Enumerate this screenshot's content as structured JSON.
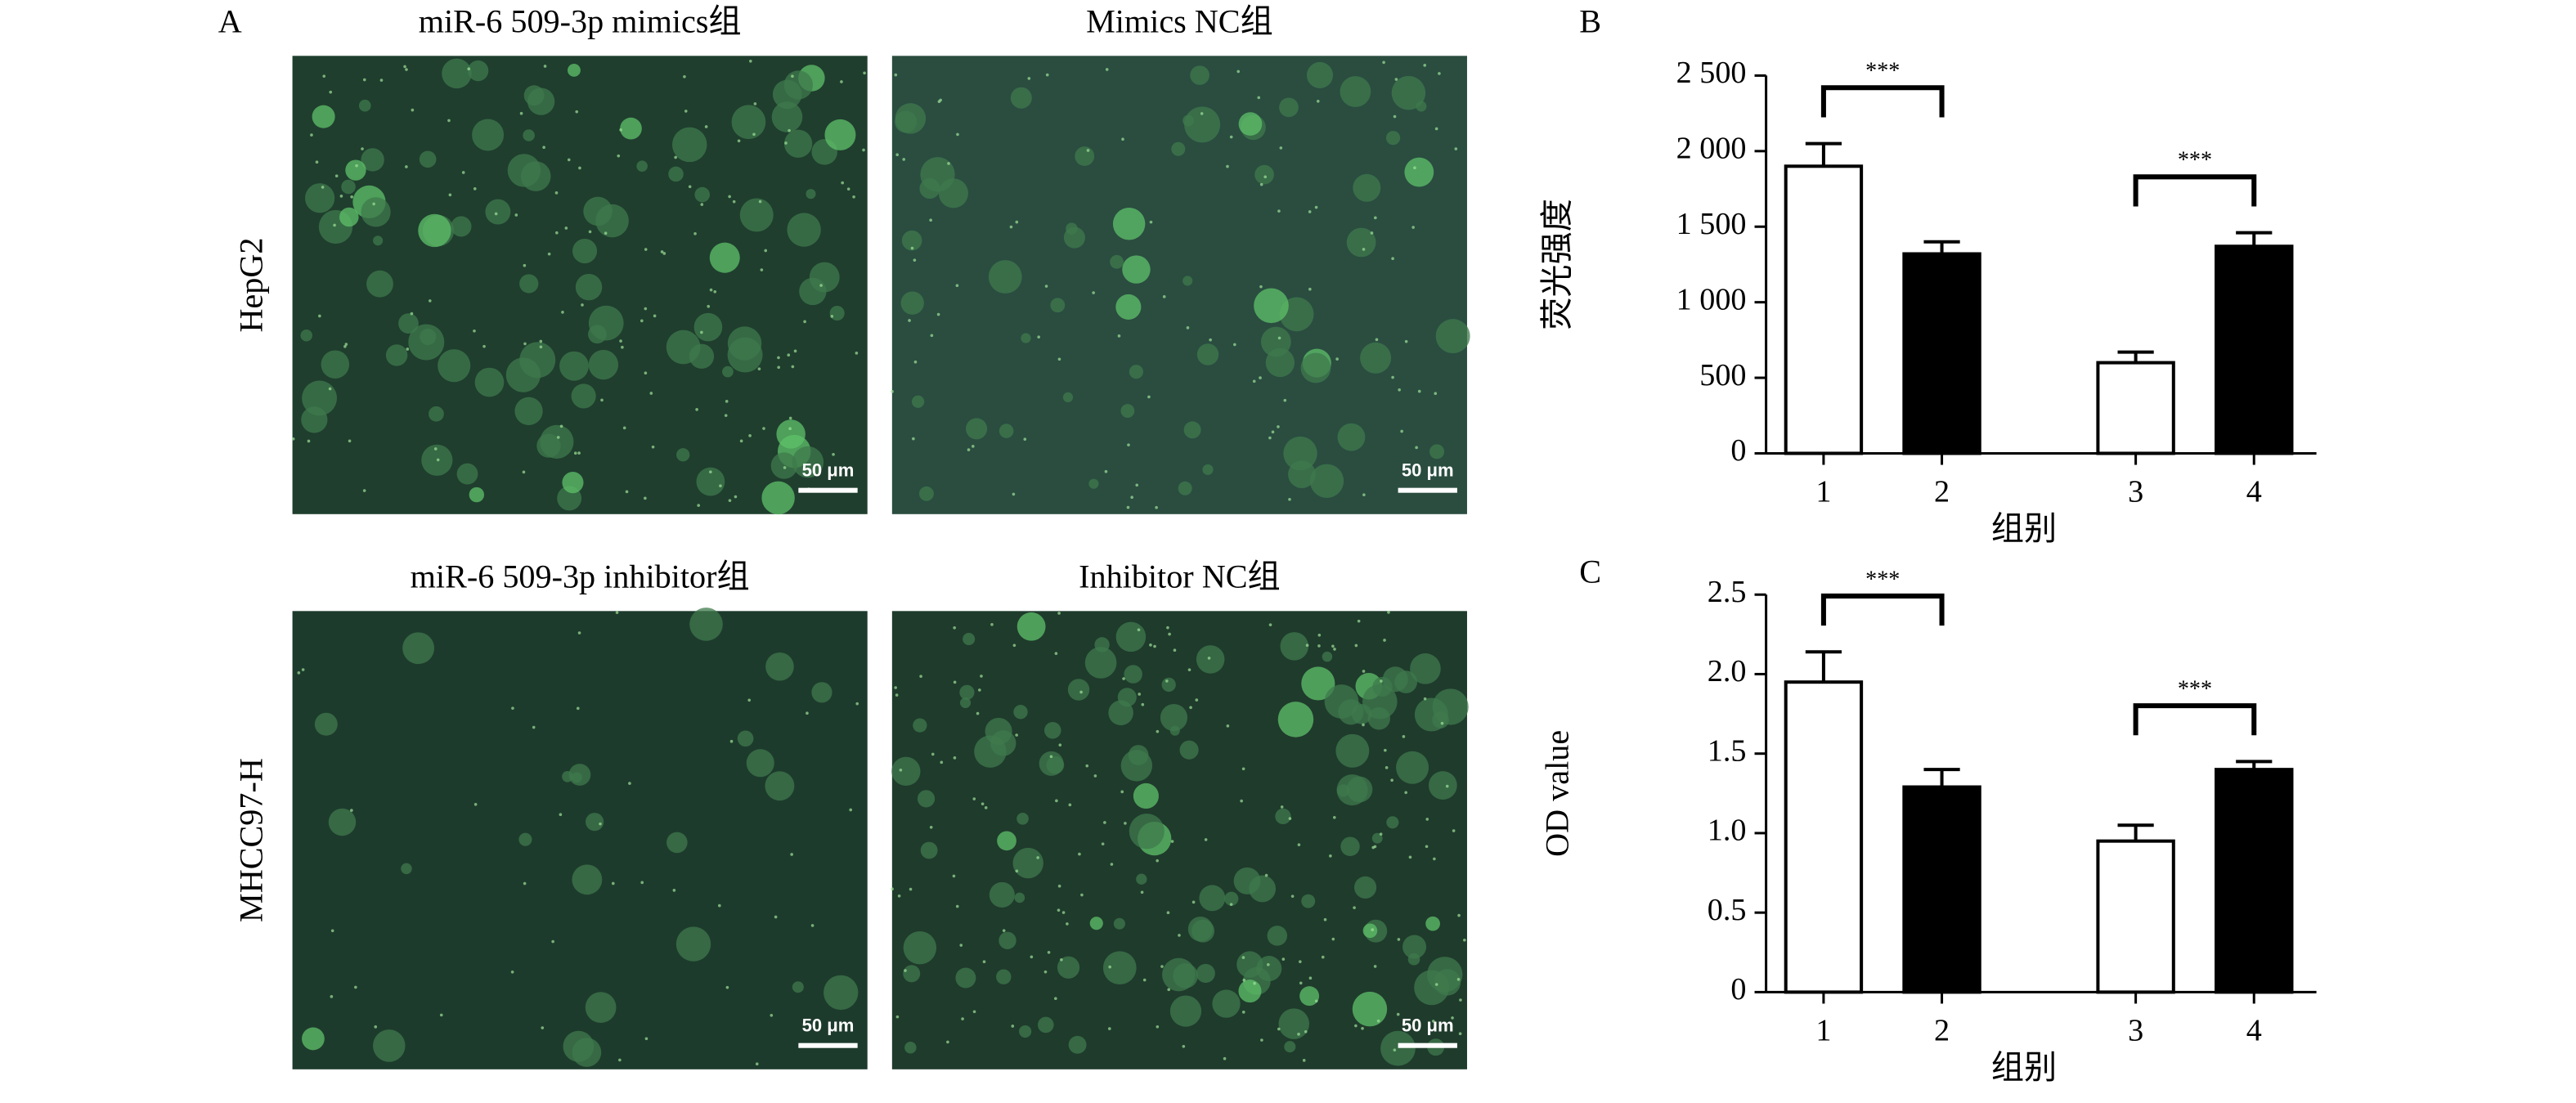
{
  "panel_a": {
    "label": "A",
    "rows": [
      "HepG2",
      "MHCC97-H"
    ],
    "images": [
      {
        "title": "miR-6 509-3p mimics组",
        "scale_bar": "50 μm"
      },
      {
        "title": "Mimics NC组",
        "scale_bar": "50 μm"
      },
      {
        "title": "miR-6 509-3p inhibitor组",
        "scale_bar": "50 μm"
      },
      {
        "title": "Inhibitor NC组",
        "scale_bar": "50 μm"
      }
    ]
  },
  "chart_data": [
    {
      "type": "bar",
      "panel_label": "B",
      "ylabel": "荧光强度",
      "xlabel": "组别",
      "categories": [
        "1",
        "2",
        "3",
        "4"
      ],
      "values": [
        1900,
        1320,
        600,
        1370
      ],
      "errors": [
        150,
        80,
        70,
        90
      ],
      "colors": [
        "#ffffff",
        "#000000",
        "#ffffff",
        "#000000"
      ],
      "ylim": [
        0,
        2500
      ],
      "yticks": [
        0,
        500,
        {
          "value": 1000,
          "label": "1 000"
        },
        {
          "value": 1500,
          "label": "1 500"
        },
        {
          "value": 2000,
          "label": "2 000"
        },
        {
          "value": 2500,
          "label": "2 500"
        }
      ],
      "annotations": [
        {
          "text": "***",
          "from": "1",
          "to": "2"
        },
        {
          "text": "***",
          "from": "3",
          "to": "4"
        }
      ]
    },
    {
      "type": "bar",
      "panel_label": "C",
      "ylabel": "OD value",
      "xlabel": "组别",
      "categories": [
        "1",
        "2",
        "3",
        "4"
      ],
      "values": [
        1.95,
        1.29,
        0.95,
        1.4
      ],
      "errors": [
        0.19,
        0.11,
        0.1,
        0.05
      ],
      "colors": [
        "#ffffff",
        "#000000",
        "#ffffff",
        "#000000"
      ],
      "ylim": [
        0,
        2.5
      ],
      "yticks": [
        0,
        0.5,
        {
          "value": 1,
          "label": "1.0"
        },
        1.5,
        {
          "value": 2,
          "label": "2.0"
        },
        2.5
      ],
      "annotations": [
        {
          "text": "***",
          "from": "1",
          "to": "2"
        },
        {
          "text": "***",
          "from": "3",
          "to": "4"
        }
      ]
    }
  ]
}
